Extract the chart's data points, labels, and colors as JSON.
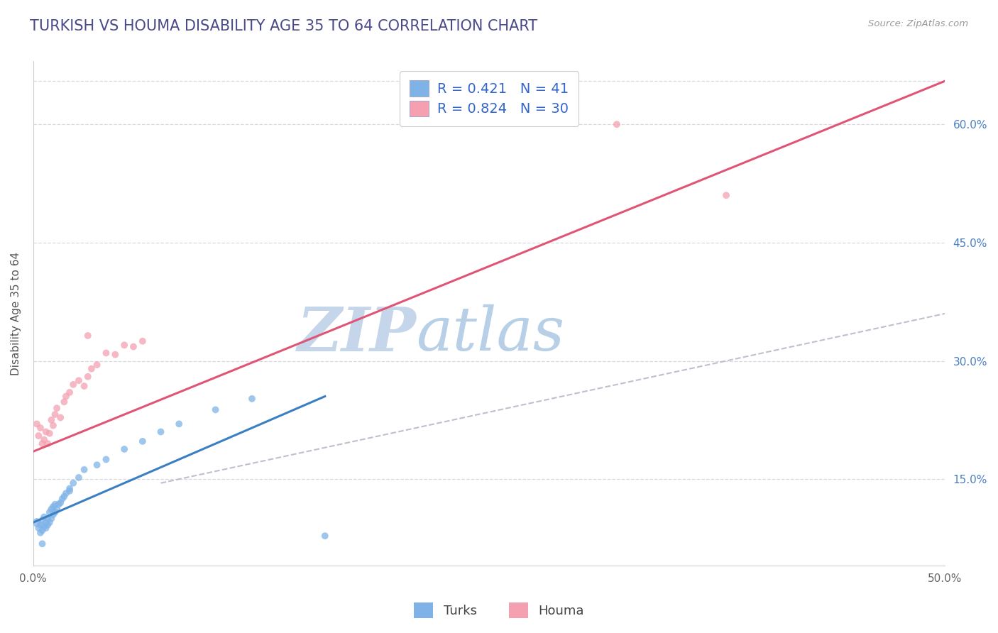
{
  "title": "TURKISH VS HOUMA DISABILITY AGE 35 TO 64 CORRELATION CHART",
  "source_text": "Source: ZipAtlas.com",
  "ylabel": "Disability Age 35 to 64",
  "xlim": [
    0.0,
    0.5
  ],
  "ylim": [
    0.04,
    0.68
  ],
  "xtick_positions": [
    0.0,
    0.5
  ],
  "xtick_labels": [
    "0.0%",
    "50.0%"
  ],
  "yticks_right": [
    0.15,
    0.3,
    0.45,
    0.6
  ],
  "ytick_labels_right": [
    "15.0%",
    "30.0%",
    "45.0%",
    "60.0%"
  ],
  "title_color": "#4a4a8a",
  "title_fontsize": 15,
  "watermark_zip": "ZIP",
  "watermark_atlas": "atlas",
  "watermark_color_zip": "#c5d5ea",
  "watermark_color_atlas": "#b8cfe8",
  "legend_label1": "R = 0.421   N = 41",
  "legend_label2": "R = 0.824   N = 30",
  "turks_color": "#7fb3e8",
  "houma_color": "#f4a0b0",
  "turks_line_color": "#3a7fc1",
  "houma_line_color": "#e05575",
  "ref_line_color": "#b8b8c8",
  "background_color": "#ffffff",
  "grid_color": "#d8d8e0",
  "turks_x": [
    0.002,
    0.003,
    0.004,
    0.004,
    0.005,
    0.005,
    0.006,
    0.006,
    0.007,
    0.007,
    0.008,
    0.008,
    0.009,
    0.009,
    0.01,
    0.01,
    0.011,
    0.011,
    0.012,
    0.012,
    0.013,
    0.014,
    0.015,
    0.016,
    0.017,
    0.018,
    0.02,
    0.022,
    0.025,
    0.028,
    0.035,
    0.04,
    0.05,
    0.06,
    0.07,
    0.08,
    0.1,
    0.12,
    0.16,
    0.02,
    0.005
  ],
  "turks_y": [
    0.095,
    0.088,
    0.082,
    0.092,
    0.085,
    0.098,
    0.09,
    0.102,
    0.088,
    0.095,
    0.092,
    0.1,
    0.095,
    0.108,
    0.1,
    0.112,
    0.105,
    0.115,
    0.108,
    0.118,
    0.112,
    0.118,
    0.12,
    0.125,
    0.128,
    0.132,
    0.138,
    0.145,
    0.152,
    0.162,
    0.168,
    0.175,
    0.188,
    0.198,
    0.21,
    0.22,
    0.238,
    0.252,
    0.078,
    0.135,
    0.068
  ],
  "turks_sizes": [
    80,
    50,
    50,
    50,
    50,
    50,
    50,
    50,
    50,
    50,
    50,
    50,
    50,
    50,
    50,
    50,
    50,
    50,
    50,
    50,
    50,
    50,
    50,
    50,
    50,
    50,
    50,
    50,
    50,
    50,
    50,
    50,
    50,
    50,
    50,
    50,
    50,
    50,
    50,
    50,
    50
  ],
  "houma_x": [
    0.002,
    0.003,
    0.004,
    0.005,
    0.006,
    0.007,
    0.008,
    0.009,
    0.01,
    0.011,
    0.012,
    0.013,
    0.015,
    0.017,
    0.018,
    0.02,
    0.022,
    0.025,
    0.028,
    0.03,
    0.032,
    0.035,
    0.04,
    0.045,
    0.05,
    0.055,
    0.06,
    0.32,
    0.38,
    0.03
  ],
  "houma_y": [
    0.22,
    0.205,
    0.215,
    0.195,
    0.2,
    0.21,
    0.195,
    0.208,
    0.225,
    0.218,
    0.232,
    0.24,
    0.228,
    0.248,
    0.255,
    0.26,
    0.27,
    0.275,
    0.268,
    0.28,
    0.29,
    0.295,
    0.31,
    0.308,
    0.32,
    0.318,
    0.325,
    0.6,
    0.51,
    0.332
  ],
  "houma_sizes": [
    50,
    50,
    50,
    50,
    50,
    50,
    50,
    50,
    50,
    50,
    50,
    50,
    50,
    50,
    50,
    50,
    50,
    50,
    50,
    50,
    50,
    50,
    50,
    50,
    50,
    50,
    50,
    50,
    50,
    50
  ],
  "turks_line_x": [
    0.0,
    0.16
  ],
  "turks_line_y": [
    0.095,
    0.255
  ],
  "houma_line_x": [
    0.0,
    0.5
  ],
  "houma_line_y": [
    0.185,
    0.655
  ],
  "ref_line_x": [
    0.07,
    0.5
  ],
  "ref_line_y": [
    0.145,
    0.36
  ]
}
